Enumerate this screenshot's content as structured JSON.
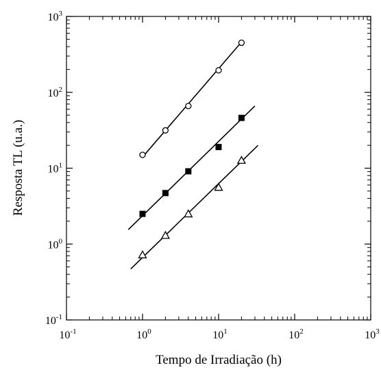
{
  "chart_data": {
    "type": "scatter",
    "xlabel": "Tempo de Irradiação (h)",
    "ylabel": "Resposta TL (u.a.)",
    "x_scale": "log",
    "y_scale": "log",
    "xlim": [
      0.1,
      1000
    ],
    "ylim": [
      0.1,
      1000
    ],
    "grid": false,
    "x_ticks": [
      {
        "value": 0.1,
        "base": "10",
        "exp": "-1"
      },
      {
        "value": 1,
        "base": "10",
        "exp": "0"
      },
      {
        "value": 10,
        "base": "10",
        "exp": "1"
      },
      {
        "value": 100,
        "base": "10",
        "exp": "2"
      },
      {
        "value": 1000,
        "base": "10",
        "exp": "3"
      }
    ],
    "y_ticks": [
      {
        "value": 0.1,
        "base": "10",
        "exp": "-1"
      },
      {
        "value": 1,
        "base": "10",
        "exp": "0"
      },
      {
        "value": 10,
        "base": "10",
        "exp": "1"
      },
      {
        "value": 100,
        "base": "10",
        "exp": "2"
      },
      {
        "value": 1000,
        "base": "10",
        "exp": "3"
      }
    ],
    "series": [
      {
        "marker": "open-circle",
        "x": [
          1,
          2,
          4,
          10,
          20
        ],
        "y": [
          15,
          31.5,
          66,
          195,
          450
        ],
        "fit": {
          "x": [
            1,
            20
          ],
          "y": [
            14,
            460
          ]
        }
      },
      {
        "marker": "filled-square",
        "x": [
          1,
          2,
          4,
          10,
          20
        ],
        "y": [
          2.5,
          4.7,
          9.1,
          19,
          46
        ],
        "fit": {
          "x": [
            0.65,
            30
          ],
          "y": [
            1.55,
            66
          ]
        }
      },
      {
        "marker": "open-triangle",
        "x": [
          1,
          2,
          4,
          10,
          20
        ],
        "y": [
          0.72,
          1.3,
          2.5,
          5.6,
          12.7
        ],
        "fit": {
          "x": [
            0.7,
            33
          ],
          "y": [
            0.47,
            20
          ]
        }
      }
    ]
  }
}
